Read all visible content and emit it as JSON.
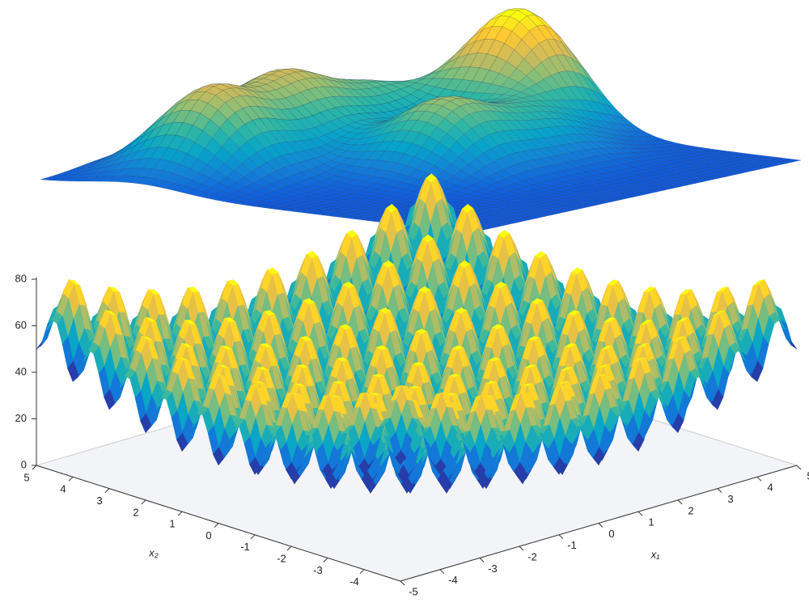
{
  "chart_data": {
    "type": "surface3d",
    "xlabel": "x₁",
    "ylabel": "x₂",
    "xlim": [
      -5,
      5
    ],
    "xticks": [
      -5,
      -4,
      -3,
      -2,
      -1,
      0,
      1,
      2,
      3,
      4,
      5
    ],
    "ylim": [
      -5,
      5
    ],
    "yticks": [
      -4,
      -3,
      -2,
      -1,
      0,
      1,
      2,
      3,
      4,
      5
    ],
    "zlim": [
      0,
      80
    ],
    "zticks": [
      0,
      20,
      40,
      60,
      80
    ]
  }
}
